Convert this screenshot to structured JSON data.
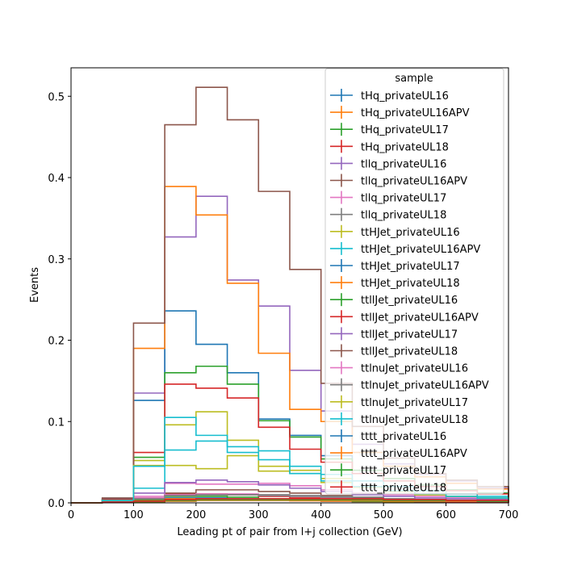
{
  "chart_data": {
    "type": "step",
    "xlabel": "Leading pt of pair from l+j collection (GeV)",
    "ylabel": "Events",
    "xlim": [
      0,
      700
    ],
    "ylim": [
      0,
      0.535
    ],
    "x_ticks": [
      "0",
      "100",
      "200",
      "300",
      "400",
      "500",
      "600",
      "700"
    ],
    "y_ticks": [
      "0.0",
      "0.1",
      "0.2",
      "0.3",
      "0.4",
      "0.5"
    ],
    "grid": false,
    "legend_title": "sample",
    "legend_position": "upper right",
    "bin_edges": [
      0,
      50,
      100,
      150,
      200,
      250,
      300,
      350,
      400,
      450,
      500,
      550,
      600,
      650,
      700
    ],
    "series": [
      {
        "name": "tHq_privateUL16",
        "color": "#1f77b4",
        "values": [
          0,
          0.001,
          0.003,
          0.006,
          0.006,
          0.005,
          0.004,
          0.003,
          0.002,
          0.0015,
          0.001,
          0.001,
          0.0008,
          0.0006
        ]
      },
      {
        "name": "tHq_privateUL16APV",
        "color": "#ff7f0e",
        "values": [
          0,
          0.001,
          0.003,
          0.005,
          0.005,
          0.0045,
          0.0035,
          0.0025,
          0.002,
          0.0015,
          0.001,
          0.0008,
          0.0006,
          0.0005
        ]
      },
      {
        "name": "tHq_privateUL17",
        "color": "#2ca02c",
        "values": [
          0,
          0.001,
          0.004,
          0.008,
          0.008,
          0.007,
          0.005,
          0.004,
          0.003,
          0.002,
          0.0015,
          0.001,
          0.0008,
          0.0006
        ]
      },
      {
        "name": "tHq_privateUL18",
        "color": "#d62728",
        "values": [
          0,
          0.002,
          0.005,
          0.011,
          0.011,
          0.01,
          0.008,
          0.006,
          0.004,
          0.003,
          0.002,
          0.0015,
          0.001,
          0.0008
        ]
      },
      {
        "name": "tllq_privateUL16",
        "color": "#9467bd",
        "values": [
          0,
          0.004,
          0.135,
          0.327,
          0.377,
          0.274,
          0.242,
          0.163,
          0.113,
          0.072,
          0.048,
          0.035,
          0.027,
          0.018
        ]
      },
      {
        "name": "tllq_privateUL16APV",
        "color": "#8c564b",
        "values": [
          0,
          0.003,
          0.006,
          0.012,
          0.016,
          0.016,
          0.014,
          0.012,
          0.009,
          0.006,
          0.005,
          0.004,
          0.003,
          0.002
        ]
      },
      {
        "name": "tllq_privateUL17",
        "color": "#e377c2",
        "values": [
          0,
          0.002,
          0.008,
          0.024,
          0.023,
          0.023,
          0.024,
          0.021,
          0.016,
          0.012,
          0.01,
          0.008,
          0.006,
          0.005
        ]
      },
      {
        "name": "tllq_privateUL18",
        "color": "#7f7f7f",
        "values": [
          0,
          0.003,
          0.005,
          0.009,
          0.01,
          0.01,
          0.01,
          0.009,
          0.008,
          0.007,
          0.005,
          0.004,
          0.003,
          0.003
        ]
      },
      {
        "name": "ttHJet_privateUL16",
        "color": "#bcbd22",
        "values": [
          0,
          0.003,
          0.052,
          0.096,
          0.112,
          0.077,
          0.045,
          0.04,
          0.03,
          0.02,
          0.014,
          0.01,
          0.008,
          0.006
        ]
      },
      {
        "name": "ttHJet_privateUL16APV",
        "color": "#17becf",
        "values": [
          0,
          0.005,
          0.018,
          0.065,
          0.076,
          0.069,
          0.064,
          0.045,
          0.035,
          0.027,
          0.02,
          0.015,
          0.011,
          0.008
        ]
      },
      {
        "name": "ttHJet_privateUL17",
        "color": "#1f77b4",
        "values": [
          0,
          0.005,
          0.126,
          0.236,
          0.195,
          0.16,
          0.103,
          0.083,
          0.058,
          0.04,
          0.03,
          0.022,
          0.016,
          0.012
        ]
      },
      {
        "name": "ttHJet_privateUL18",
        "color": "#ff7f0e",
        "values": [
          0,
          0.004,
          0.19,
          0.389,
          0.354,
          0.27,
          0.184,
          0.115,
          0.1,
          0.062,
          0.045,
          0.032,
          0.024,
          0.017
        ]
      },
      {
        "name": "ttllJet_privateUL16",
        "color": "#2ca02c",
        "values": [
          0,
          0.003,
          0.056,
          0.16,
          0.168,
          0.146,
          0.101,
          0.081,
          0.054,
          0.04,
          0.03,
          0.022,
          0.016,
          0.012
        ]
      },
      {
        "name": "ttllJet_privateUL16APV",
        "color": "#d62728",
        "values": [
          0,
          0.004,
          0.062,
          0.146,
          0.141,
          0.129,
          0.093,
          0.066,
          0.05,
          0.036,
          0.027,
          0.02,
          0.015,
          0.011
        ]
      },
      {
        "name": "ttllJet_privateUL17",
        "color": "#9467bd",
        "values": [
          0,
          0.003,
          0.012,
          0.025,
          0.028,
          0.026,
          0.022,
          0.018,
          0.014,
          0.01,
          0.008,
          0.006,
          0.005,
          0.004
        ]
      },
      {
        "name": "ttllJet_privateUL18",
        "color": "#8c564b",
        "values": [
          0,
          0.006,
          0.221,
          0.465,
          0.511,
          0.471,
          0.383,
          0.287,
          0.147,
          0.094,
          0.055,
          0.036,
          0.028,
          0.02
        ]
      },
      {
        "name": "ttlnuJet_privateUL16",
        "color": "#e377c2",
        "values": [
          0,
          0.002,
          0.006,
          0.01,
          0.011,
          0.011,
          0.009,
          0.008,
          0.006,
          0.005,
          0.004,
          0.003,
          0.002,
          0.002
        ]
      },
      {
        "name": "ttlnuJet_privateUL16APV",
        "color": "#7f7f7f",
        "values": [
          0,
          0.002,
          0.005,
          0.009,
          0.01,
          0.01,
          0.009,
          0.008,
          0.007,
          0.005,
          0.004,
          0.003,
          0.002,
          0.002
        ]
      },
      {
        "name": "ttlnuJet_privateUL17",
        "color": "#bcbd22",
        "values": [
          0,
          0.003,
          0.046,
          0.046,
          0.042,
          0.058,
          0.039,
          0.036,
          0.025,
          0.019,
          0.014,
          0.01,
          0.008,
          0.006
        ]
      },
      {
        "name": "ttlnuJet_privateUL18",
        "color": "#17becf",
        "values": [
          0,
          0.003,
          0.045,
          0.105,
          0.083,
          0.062,
          0.053,
          0.036,
          0.027,
          0.02,
          0.015,
          0.011,
          0.008,
          0.006
        ]
      },
      {
        "name": "tttt_privateUL16",
        "color": "#1f77b4",
        "values": [
          0,
          0.0005,
          0.001,
          0.002,
          0.003,
          0.003,
          0.003,
          0.003,
          0.003,
          0.003,
          0.003,
          0.002,
          0.002,
          0.002
        ]
      },
      {
        "name": "tttt_privateUL16APV",
        "color": "#ff7f0e",
        "values": [
          0,
          0.0005,
          0.001,
          0.002,
          0.003,
          0.003,
          0.003,
          0.003,
          0.003,
          0.003,
          0.002,
          0.002,
          0.002,
          0.002
        ]
      },
      {
        "name": "tttt_privateUL17",
        "color": "#2ca02c",
        "values": [
          0,
          0.0005,
          0.0015,
          0.003,
          0.004,
          0.004,
          0.004,
          0.004,
          0.004,
          0.004,
          0.003,
          0.003,
          0.003,
          0.002
        ]
      },
      {
        "name": "tttt_privateUL18",
        "color": "#d62728",
        "values": [
          0,
          0.0008,
          0.002,
          0.004,
          0.005,
          0.005,
          0.005,
          0.005,
          0.005,
          0.005,
          0.004,
          0.004,
          0.003,
          0.003
        ]
      }
    ]
  }
}
